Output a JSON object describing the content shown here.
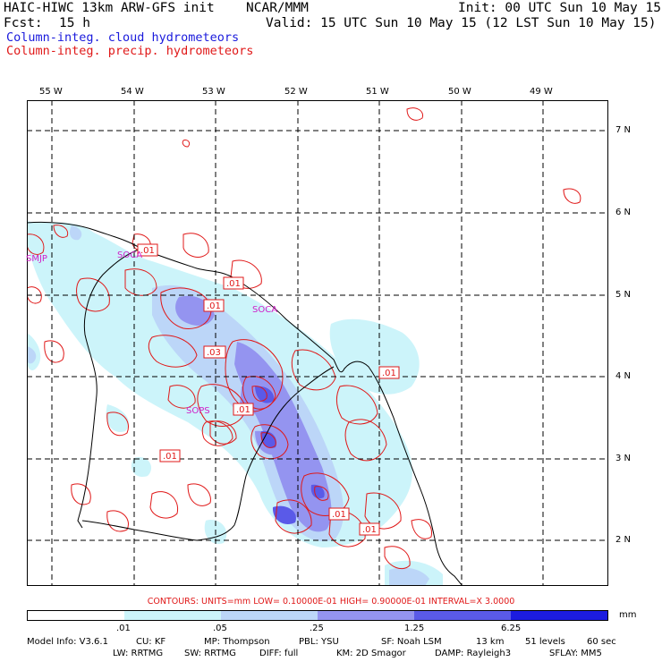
{
  "header": {
    "model": "HAIC-HIWC 13km ARW-GFS init",
    "org": "NCAR/MMM",
    "init": "Init: 00 UTC Sun 10 May 15",
    "fcst_label": "Fcst:",
    "fcst_value": "15 h",
    "valid": "Valid: 15 UTC Sun 10 May 15 (12 LST Sun 10 May 15)",
    "field_cloud": "Column-integ. cloud hydrometeors",
    "field_precip": "Column-integ. precip. hydrometeors"
  },
  "colors": {
    "cloud_text": "#1a1adc",
    "precip_text": "#e01818",
    "site_text": "#d020c8",
    "shading": [
      "#ffffff",
      "#ccf4fa",
      "#bcd6f8",
      "#9494f0",
      "#5a5ae8",
      "#1c1ce0"
    ]
  },
  "map": {
    "lon_labels": [
      "55 W",
      "54 W",
      "53 W",
      "52 W",
      "51 W",
      "50 W",
      "49 W"
    ],
    "lat_labels": [
      "7 N",
      "6 N",
      "5 N",
      "4 N",
      "3 N",
      "2 N"
    ],
    "sites": [
      "SMJP",
      "SOCA",
      "SOCA",
      "SOPS"
    ],
    "contour_labels": [
      ".01",
      ".01",
      ".01",
      ".03",
      ".01",
      ".01",
      ".01",
      ".01",
      ".01"
    ]
  },
  "scale": {
    "contours_line": "CONTOURS:  UNITS=mm  LOW= 0.10000E-01  HIGH= 0.90000E-01  INTERVAL=X  3.0000",
    "ticks": [
      ".01",
      ".05",
      ".25",
      "1.25",
      "6.25"
    ],
    "unit": "mm"
  },
  "model_info": {
    "line1": [
      "Model Info: V3.6.1",
      "CU: KF",
      "MP: Thompson",
      "PBL: YSU",
      "SF: Noah LSM",
      "13 km",
      "51 levels",
      "60 sec"
    ],
    "line2": [
      "LW: RRTMG",
      "SW: RRTMG",
      "DIFF: full",
      "KM: 2D Smagor",
      "DAMP: Rayleigh3",
      "SFLAY: MM5"
    ]
  }
}
